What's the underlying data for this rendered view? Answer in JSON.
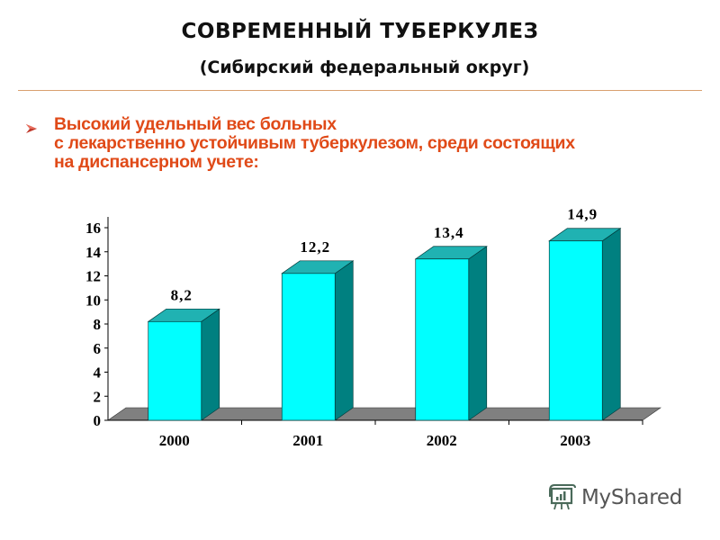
{
  "header": {
    "title": "СОВРЕМЕННЫЙ ТУБЕРКУЛЕЗ",
    "subtitle": "(Сибирский федеральный округ)"
  },
  "bullet": {
    "icon": "arrow-bullet-icon",
    "lines": [
      "Высокий удельный вес больных",
      "с лекарственно устойчивым туберкулезом, среди состоящих",
      "на диспансерном учете:"
    ]
  },
  "colors": {
    "bar_front": "#00ffff",
    "bar_top": "#20b2b2",
    "bar_side": "#008080",
    "floor": "#808080",
    "lead_text": "#e04a18",
    "rule": "#d9a070"
  },
  "chart_data": {
    "type": "bar",
    "title": "",
    "xlabel": "",
    "ylabel": "",
    "categories": [
      "2000",
      "2001",
      "2002",
      "2003"
    ],
    "values": [
      8.2,
      12.2,
      13.4,
      14.9
    ],
    "value_labels": [
      "8,2",
      "12,2",
      "13,4",
      "14,9"
    ],
    "ylim": [
      0,
      16
    ],
    "yticks": [
      "0",
      "2",
      "4",
      "6",
      "8",
      "10",
      "12",
      "14",
      "16"
    ],
    "grid": false,
    "legend": null,
    "style": "3d-column"
  },
  "watermark": {
    "text": "MyShared",
    "icon": "presentation-board-icon"
  }
}
